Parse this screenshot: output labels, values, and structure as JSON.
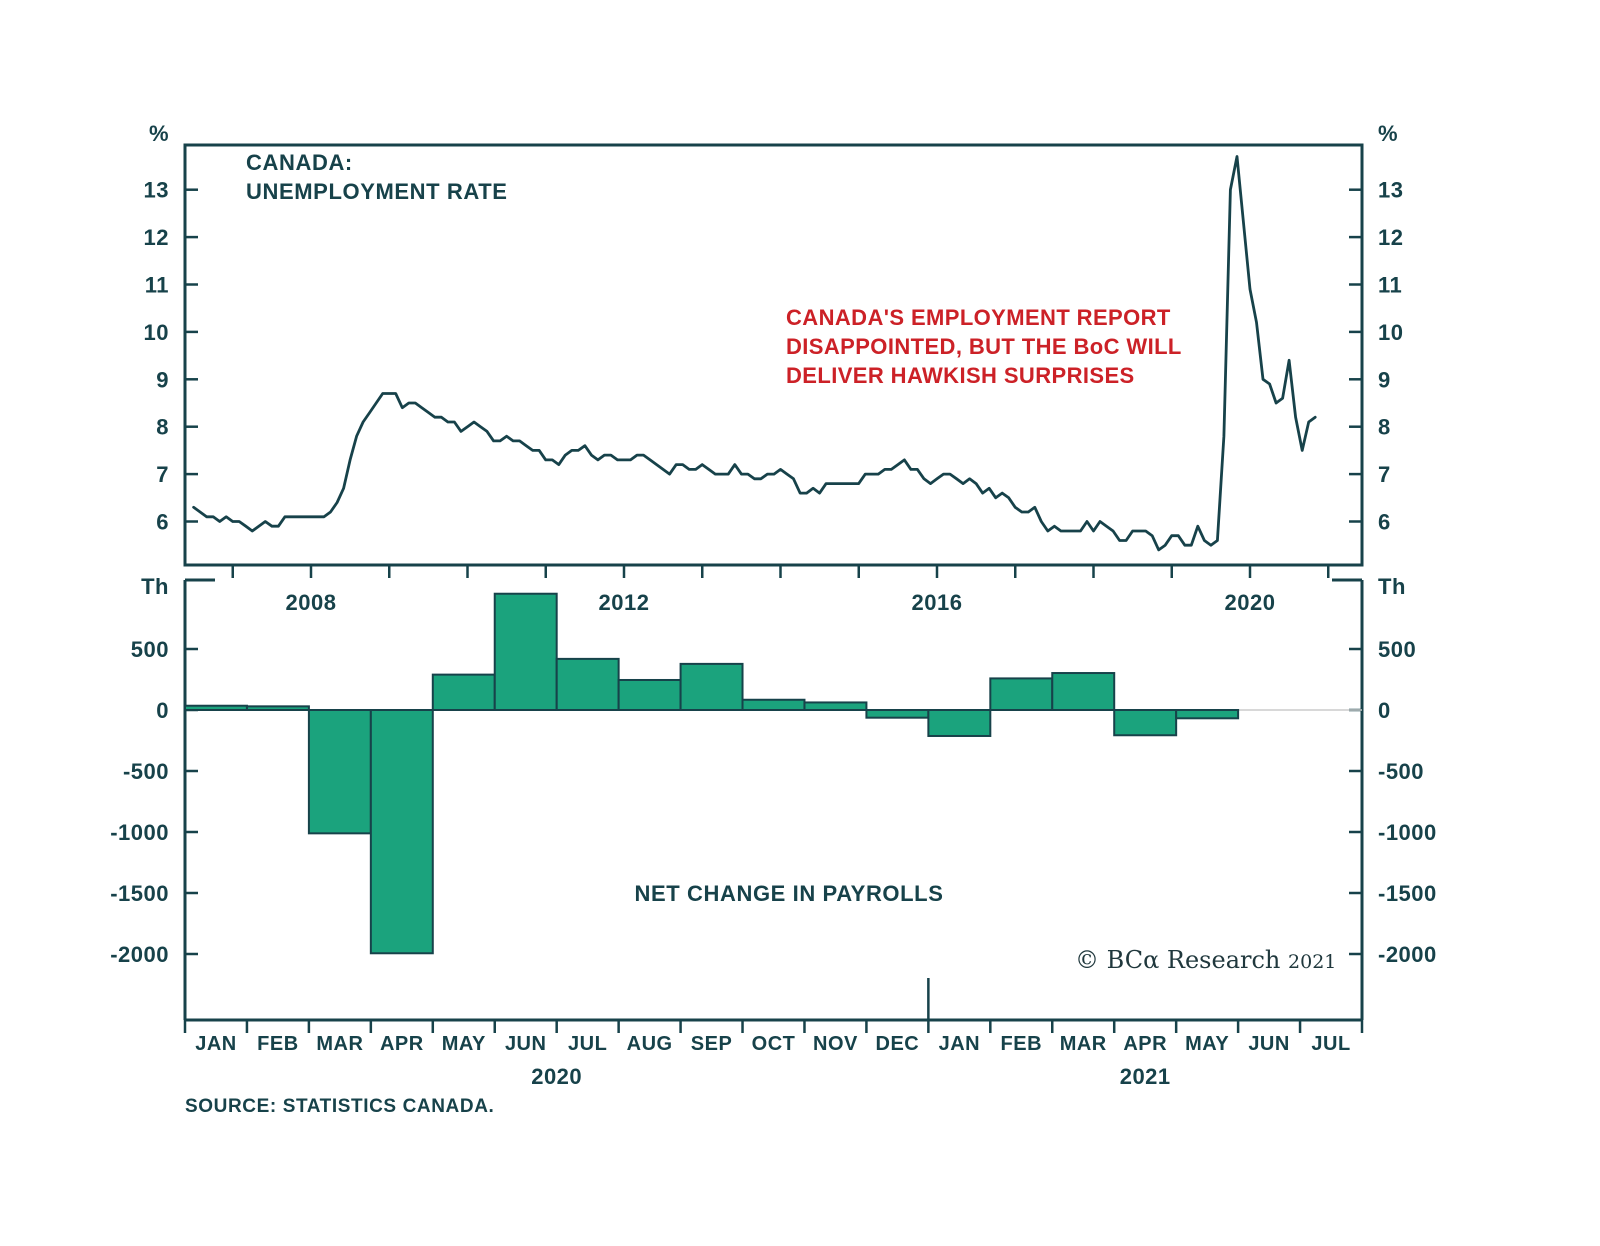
{
  "colors": {
    "axis": "#17424a",
    "text": "#17424a",
    "line": "#17424a",
    "bar_fill": "#1ba37d",
    "bar_stroke": "#17424a",
    "annotation_red": "#cc2127",
    "zero_line": "#cccccc",
    "background": "#ffffff"
  },
  "top_chart": {
    "title_line1": "CANADA:",
    "title_line2": "UNEMPLOYMENT RATE",
    "unit_label": "%",
    "yticks": [
      13,
      12,
      11,
      10,
      9,
      8,
      7,
      6
    ],
    "xticks": [
      2008,
      2012,
      2016,
      2020
    ],
    "annotation": {
      "line1": "CANADA'S EMPLOYMENT REPORT",
      "line2": "DISAPPOINTED, BUT THE BoC WILL",
      "line3": "DELIVER HAWKISH SURPRISES"
    }
  },
  "bottom_chart": {
    "label": "NET CHANGE IN PAYROLLS",
    "unit_label": "Th",
    "yticks": [
      500,
      0,
      -500,
      -1000,
      -1500,
      -2000
    ],
    "months": [
      "JAN",
      "FEB",
      "MAR",
      "APR",
      "MAY",
      "JUN",
      "JUL",
      "AUG",
      "SEP",
      "OCT",
      "NOV",
      "DEC",
      "JAN",
      "FEB",
      "MAR",
      "APR",
      "MAY",
      "JUN",
      "JUL"
    ],
    "year_labels": [
      "2020",
      "2021"
    ]
  },
  "copyright": {
    "brand": "© BCα Research",
    "year": "2021"
  },
  "source": "SOURCE: STATISTICS CANADA.",
  "chart_data": [
    {
      "type": "line",
      "title": "Canada: Unemployment Rate",
      "ylabel": "%",
      "ylim": [
        5.1,
        13.95
      ],
      "x_start": "2007-01",
      "x_end": "2021-05",
      "frequency": "monthly",
      "xticks": [
        2008,
        2012,
        2016,
        2020
      ],
      "grid": false,
      "values": [
        6.3,
        6.2,
        6.1,
        6.1,
        6.0,
        6.1,
        6.0,
        6.0,
        5.9,
        5.8,
        5.9,
        6.0,
        5.9,
        5.9,
        6.1,
        6.1,
        6.1,
        6.1,
        6.1,
        6.1,
        6.1,
        6.2,
        6.4,
        6.7,
        7.3,
        7.8,
        8.1,
        8.3,
        8.5,
        8.7,
        8.7,
        8.7,
        8.4,
        8.5,
        8.5,
        8.4,
        8.3,
        8.2,
        8.2,
        8.1,
        8.1,
        7.9,
        8.0,
        8.1,
        8.0,
        7.9,
        7.7,
        7.7,
        7.8,
        7.7,
        7.7,
        7.6,
        7.5,
        7.5,
        7.3,
        7.3,
        7.2,
        7.4,
        7.5,
        7.5,
        7.6,
        7.4,
        7.3,
        7.4,
        7.4,
        7.3,
        7.3,
        7.3,
        7.4,
        7.4,
        7.3,
        7.2,
        7.1,
        7.0,
        7.2,
        7.2,
        7.1,
        7.1,
        7.2,
        7.1,
        7.0,
        7.0,
        7.0,
        7.2,
        7.0,
        7.0,
        6.9,
        6.9,
        7.0,
        7.0,
        7.1,
        7.0,
        6.9,
        6.6,
        6.6,
        6.7,
        6.6,
        6.8,
        6.8,
        6.8,
        6.8,
        6.8,
        6.8,
        7.0,
        7.0,
        7.0,
        7.1,
        7.1,
        7.2,
        7.3,
        7.1,
        7.1,
        6.9,
        6.8,
        6.9,
        7.0,
        7.0,
        6.9,
        6.8,
        6.9,
        6.8,
        6.6,
        6.7,
        6.5,
        6.6,
        6.5,
        6.3,
        6.2,
        6.2,
        6.3,
        6.0,
        5.8,
        5.9,
        5.8,
        5.8,
        5.8,
        5.8,
        6.0,
        5.8,
        6.0,
        5.9,
        5.8,
        5.6,
        5.6,
        5.8,
        5.8,
        5.8,
        5.7,
        5.4,
        5.5,
        5.7,
        5.7,
        5.5,
        5.5,
        5.9,
        5.6,
        5.5,
        5.6,
        7.8,
        13.0,
        13.7,
        12.3,
        10.9,
        10.2,
        9.0,
        8.9,
        8.5,
        8.6,
        9.4,
        8.2,
        7.5,
        8.1,
        8.2
      ]
    },
    {
      "type": "bar",
      "title": "Net Change in Payrolls",
      "ylabel": "Th",
      "ylim": [
        -2550,
        1070
      ],
      "categories": [
        "JAN 2020",
        "FEB 2020",
        "MAR 2020",
        "APR 2020",
        "MAY 2020",
        "JUN 2020",
        "JUL 2020",
        "AUG 2020",
        "SEP 2020",
        "OCT 2020",
        "NOV 2020",
        "DEC 2020",
        "JAN 2021",
        "FEB 2021",
        "MAR 2021",
        "APR 2021",
        "MAY 2021",
        "JUN 2021",
        "JUL 2021"
      ],
      "values": [
        35,
        30,
        -1011,
        -1994,
        290,
        953,
        419,
        246,
        378,
        84,
        62,
        -63,
        -213,
        259,
        303,
        -207,
        -68,
        null,
        null
      ],
      "grid": false
    }
  ]
}
